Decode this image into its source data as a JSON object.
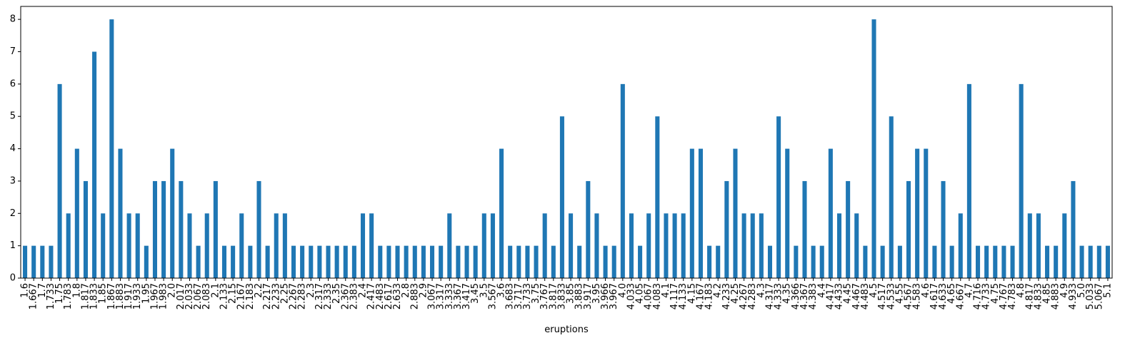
{
  "chart_data": {
    "type": "bar",
    "title": "",
    "xlabel": "eruptions",
    "ylabel": "",
    "ylim": [
      0,
      8.4
    ],
    "yticks": [
      0,
      1,
      2,
      3,
      4,
      5,
      6,
      7,
      8
    ],
    "grid": false,
    "bar_color": "#1f77b4",
    "categories": [
      "1.6",
      "1.667",
      "1.7",
      "1.733",
      "1.75",
      "1.783",
      "1.8",
      "1.817",
      "1.833",
      "1.85",
      "1.867",
      "1.883",
      "1.917",
      "1.933",
      "1.95",
      "1.967",
      "1.983",
      "2.0",
      "2.017",
      "2.033",
      "2.067",
      "2.083",
      "2.1",
      "2.133",
      "2.15",
      "2.167",
      "2.183",
      "2.2",
      "2.217",
      "2.233",
      "2.25",
      "2.267",
      "2.283",
      "2.3",
      "2.317",
      "2.333",
      "2.35",
      "2.367",
      "2.383",
      "2.4",
      "2.417",
      "2.483",
      "2.617",
      "2.633",
      "2.8",
      "2.883",
      "2.9",
      "3.067",
      "3.317",
      "3.333",
      "3.367",
      "3.417",
      "3.45",
      "3.5",
      "3.567",
      "3.6",
      "3.683",
      "3.717",
      "3.733",
      "3.75",
      "3.767",
      "3.817",
      "3.833",
      "3.85",
      "3.883",
      "3.917",
      "3.95",
      "3.966",
      "3.967",
      "4.0",
      "4.033",
      "4.05",
      "4.067",
      "4.083",
      "4.1",
      "4.117",
      "4.133",
      "4.15",
      "4.167",
      "4.183",
      "4.2",
      "4.233",
      "4.25",
      "4.267",
      "4.283",
      "4.3",
      "4.317",
      "4.333",
      "4.35",
      "4.366",
      "4.367",
      "4.383",
      "4.4",
      "4.417",
      "4.433",
      "4.45",
      "4.467",
      "4.483",
      "4.5",
      "4.517",
      "4.533",
      "4.55",
      "4.567",
      "4.583",
      "4.6",
      "4.617",
      "4.633",
      "4.65",
      "4.667",
      "4.7",
      "4.716",
      "4.733",
      "4.75",
      "4.767",
      "4.783",
      "4.8",
      "4.817",
      "4.833",
      "4.85",
      "4.883",
      "4.9",
      "4.933",
      "5.0",
      "5.033",
      "5.067",
      "5.1"
    ],
    "values": [
      1,
      1,
      1,
      1,
      6,
      2,
      4,
      3,
      7,
      2,
      8,
      4,
      2,
      2,
      1,
      3,
      3,
      4,
      3,
      2,
      1,
      2,
      3,
      1,
      1,
      2,
      1,
      3,
      1,
      2,
      2,
      1,
      1,
      1,
      1,
      1,
      1,
      1,
      1,
      2,
      2,
      1,
      1,
      1,
      1,
      1,
      1,
      1,
      1,
      2,
      1,
      1,
      1,
      2,
      2,
      4,
      1,
      1,
      1,
      1,
      2,
      1,
      5,
      2,
      1,
      3,
      2,
      1,
      1,
      6,
      2,
      1,
      2,
      5,
      2,
      2,
      2,
      4,
      4,
      1,
      1,
      3,
      4,
      2,
      2,
      2,
      1,
      5,
      4,
      1,
      3,
      1,
      1,
      4,
      2,
      3,
      2,
      1,
      8,
      1,
      5,
      1,
      3,
      4,
      4,
      1,
      3,
      1,
      2,
      6,
      1,
      1,
      1,
      1,
      1,
      6,
      2,
      2,
      1,
      1,
      2,
      3,
      1,
      1,
      1,
      1
    ]
  }
}
